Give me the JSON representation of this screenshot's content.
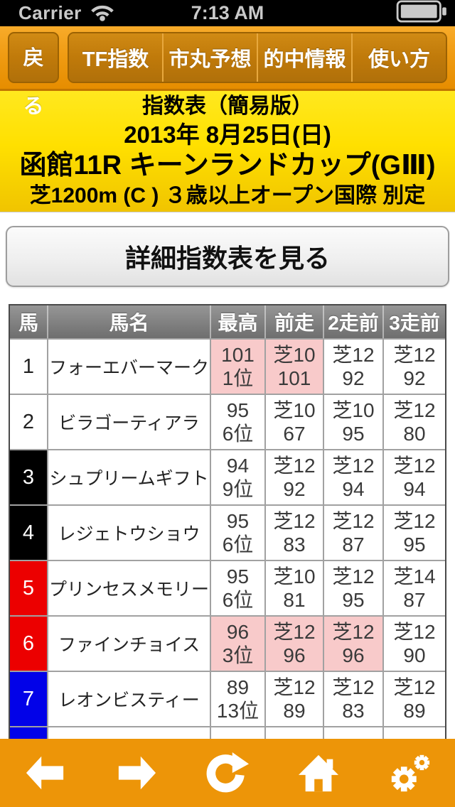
{
  "status_bar": {
    "carrier": "Carrier",
    "time": "7:13 AM",
    "icons": [
      "wifi-icon",
      "battery-icon"
    ]
  },
  "nav": {
    "back_label": "戻る",
    "tabs": [
      {
        "label": "TF指数"
      },
      {
        "label": "市丸予想"
      },
      {
        "label": "的中情報"
      },
      {
        "label": "使い方"
      }
    ]
  },
  "race_header": {
    "title": "指数表（簡易版）",
    "date": "2013年 8月25日(日)",
    "race": "函館11R キーンランドカップ(GⅢ)",
    "conditions": "芝1200m (C ) ３歳以上オープン国際 別定"
  },
  "detail_button_label": "詳細指数表を見る",
  "table": {
    "columns": [
      "馬",
      "馬名",
      "最高",
      "前走",
      "2走前",
      "3走前"
    ],
    "rows": [
      {
        "num": "1",
        "waku": "white",
        "name": "フォーエバーマーク",
        "cells": [
          {
            "top": "101",
            "bottom": "1位",
            "highlight": true
          },
          {
            "top": "芝10",
            "bottom": "101",
            "highlight": true
          },
          {
            "top": "芝12",
            "bottom": "92",
            "highlight": false
          },
          {
            "top": "芝12",
            "bottom": "92",
            "highlight": false
          }
        ]
      },
      {
        "num": "2",
        "waku": "white",
        "name": "ビラゴーティアラ",
        "cells": [
          {
            "top": "95",
            "bottom": "6位",
            "highlight": false
          },
          {
            "top": "芝10",
            "bottom": "67",
            "highlight": false
          },
          {
            "top": "芝10",
            "bottom": "95",
            "highlight": false
          },
          {
            "top": "芝12",
            "bottom": "80",
            "highlight": false
          }
        ]
      },
      {
        "num": "3",
        "waku": "black",
        "name": "シュプリームギフト",
        "cells": [
          {
            "top": "94",
            "bottom": "9位",
            "highlight": false
          },
          {
            "top": "芝12",
            "bottom": "92",
            "highlight": false
          },
          {
            "top": "芝12",
            "bottom": "94",
            "highlight": false
          },
          {
            "top": "芝12",
            "bottom": "94",
            "highlight": false
          }
        ]
      },
      {
        "num": "4",
        "waku": "black",
        "name": "レジェトウショウ",
        "cells": [
          {
            "top": "95",
            "bottom": "6位",
            "highlight": false
          },
          {
            "top": "芝12",
            "bottom": "83",
            "highlight": false
          },
          {
            "top": "芝12",
            "bottom": "87",
            "highlight": false
          },
          {
            "top": "芝12",
            "bottom": "95",
            "highlight": false
          }
        ]
      },
      {
        "num": "5",
        "waku": "red",
        "name": "プリンセスメモリー",
        "cells": [
          {
            "top": "95",
            "bottom": "6位",
            "highlight": false
          },
          {
            "top": "芝10",
            "bottom": "81",
            "highlight": false
          },
          {
            "top": "芝12",
            "bottom": "95",
            "highlight": false
          },
          {
            "top": "芝14",
            "bottom": "87",
            "highlight": false
          }
        ]
      },
      {
        "num": "6",
        "waku": "red",
        "name": "ファインチョイス",
        "cells": [
          {
            "top": "96",
            "bottom": "3位",
            "highlight": true
          },
          {
            "top": "芝12",
            "bottom": "96",
            "highlight": true
          },
          {
            "top": "芝12",
            "bottom": "96",
            "highlight": true
          },
          {
            "top": "芝12",
            "bottom": "90",
            "highlight": false
          }
        ]
      },
      {
        "num": "7",
        "waku": "blue",
        "name": "レオンビスティー",
        "cells": [
          {
            "top": "89",
            "bottom": "13位",
            "highlight": false
          },
          {
            "top": "芝12",
            "bottom": "89",
            "highlight": false
          },
          {
            "top": "芝12",
            "bottom": "83",
            "highlight": false
          },
          {
            "top": "芝12",
            "bottom": "89",
            "highlight": false
          }
        ]
      },
      {
        "num": "",
        "waku": "blue",
        "name": "",
        "cells": [
          {
            "top": "",
            "bottom": "",
            "highlight": false
          },
          {
            "top": "",
            "bottom": "",
            "highlight": false
          },
          {
            "top": "",
            "bottom": "",
            "highlight": false
          },
          {
            "top": "",
            "bottom": "",
            "highlight": false
          }
        ]
      }
    ]
  },
  "toolbar": {
    "icons": [
      "back-arrow-icon",
      "forward-arrow-icon",
      "refresh-icon",
      "home-icon",
      "settings-gears-icon"
    ]
  },
  "colors": {
    "accent_orange": "#ED9508",
    "nav_orange_light": "#F8AB2A",
    "header_yellow": "#FFE41A",
    "highlight_pink": "#F8CACA",
    "waku_red": "#EC0000",
    "waku_blue": "#0202E8",
    "waku_black": "#000000",
    "table_header_gray": "#7E7E7E"
  }
}
